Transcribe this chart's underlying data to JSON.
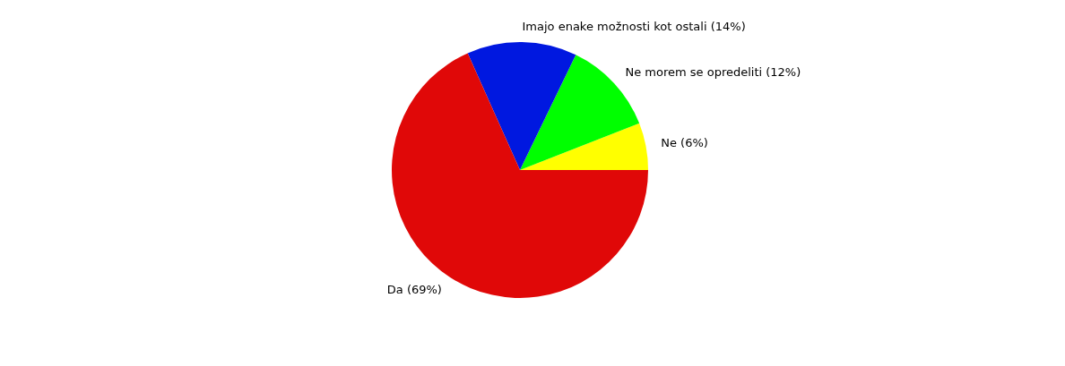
{
  "chart_data": {
    "type": "pie",
    "categories": [
      "Ne (6%)",
      "Ne morem se opredeliti (12%)",
      "Imajo enake možnosti kot ostali (14%)",
      "Da (69%)"
    ],
    "values": [
      6,
      12,
      14,
      69
    ],
    "colors": [
      "#ffff00",
      "#00ff00",
      "#0018e0",
      "#e00808"
    ],
    "legend": false
  }
}
